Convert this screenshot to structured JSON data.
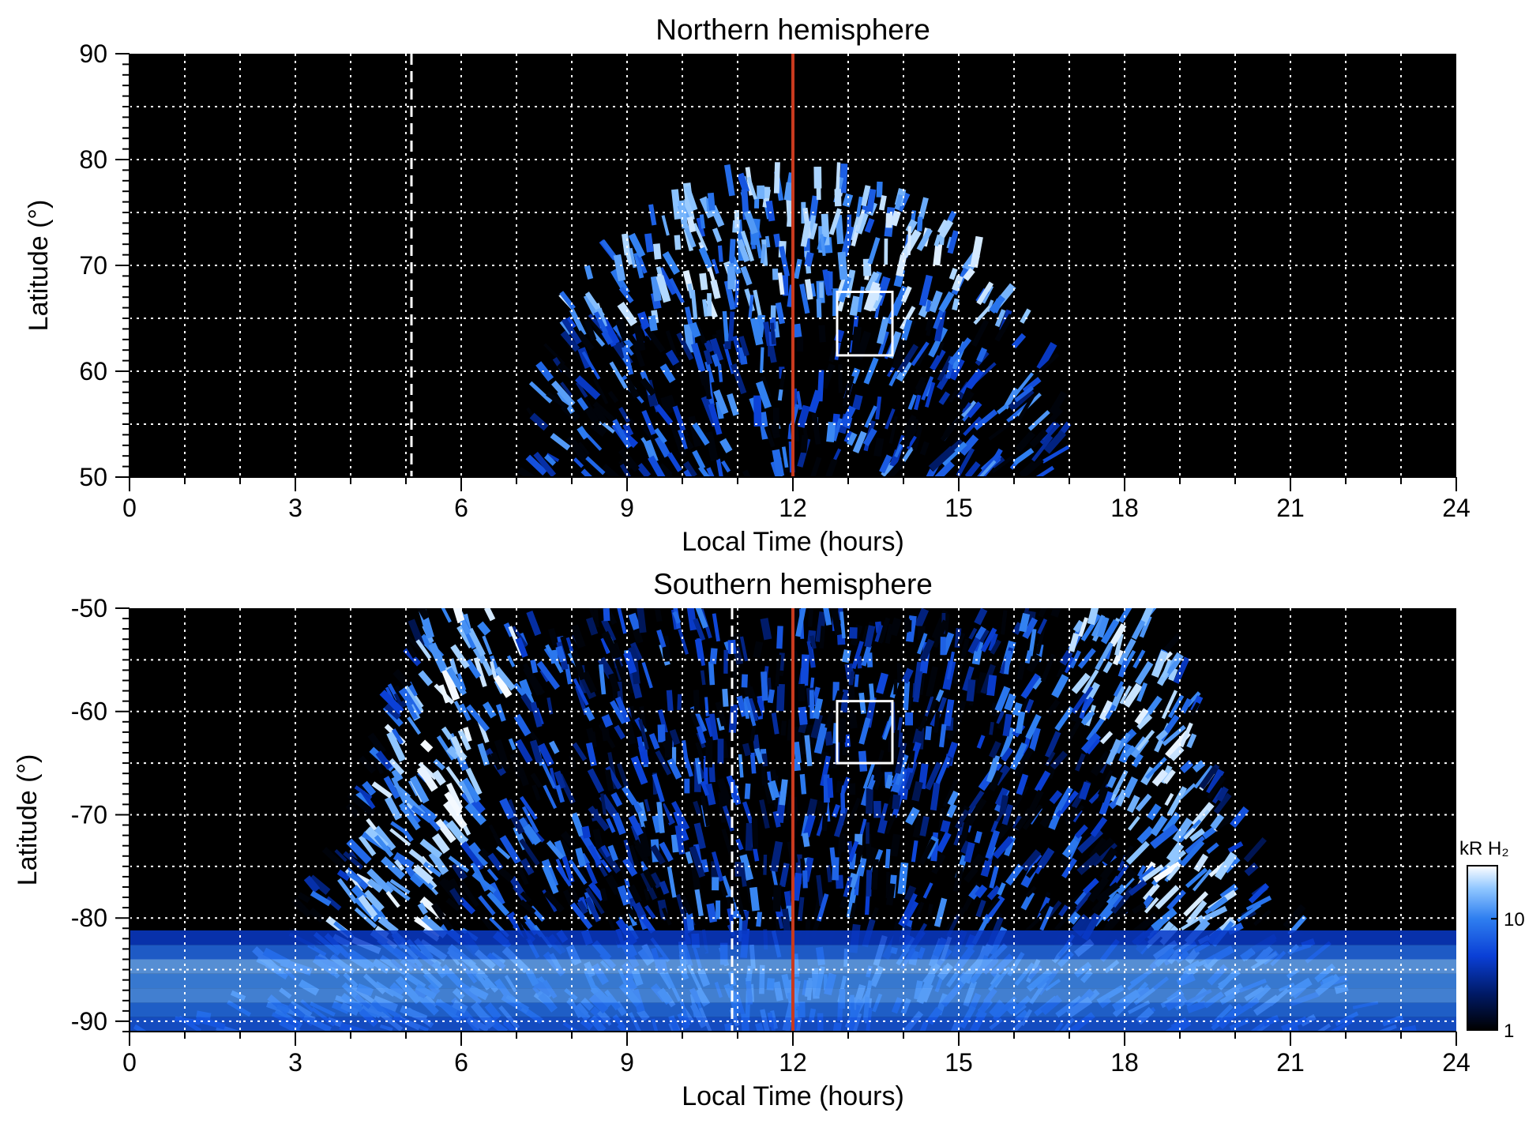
{
  "colors": {
    "background": "#000000",
    "grid": "#ffffff",
    "noon_line": "#c83a1e",
    "colormap": [
      "#000000",
      "#001a66",
      "#0a3fd6",
      "#2f7ff0",
      "#8fc6ff",
      "#ffffff"
    ]
  },
  "colorbar": {
    "title": "kR H₂",
    "scale": "log",
    "range": [
      1,
      30
    ],
    "ticks": [
      "1",
      "10"
    ],
    "tick_values": [
      1,
      10
    ]
  },
  "chart_data": [
    {
      "type": "heatmap",
      "title": "Northern hemisphere",
      "xlabel": "Local Time (hours)",
      "ylabel": "Latitude (°)",
      "xlim": [
        0,
        24
      ],
      "ylim": [
        50,
        90
      ],
      "x_ticks": [
        "0",
        "3",
        "6",
        "9",
        "12",
        "15",
        "18",
        "21",
        "24"
      ],
      "x_tick_values": [
        0,
        3,
        6,
        9,
        12,
        15,
        18,
        21,
        24
      ],
      "y_ticks": [
        "50",
        "60",
        "70",
        "80",
        "90"
      ],
      "y_tick_values": [
        50,
        60,
        70,
        80,
        90
      ],
      "grid": true,
      "grid_x_step": 1,
      "grid_y_step": 5,
      "coverage_lt": [
        7,
        17
      ],
      "coverage_edge_lat": [
        50,
        79
      ],
      "bright_band_lat": [
        65,
        76
      ],
      "noon_line_lt": 12,
      "dashed_line_lt": 5.1,
      "box": {
        "lt": [
          12.8,
          13.8
        ],
        "lat": [
          61.5,
          67.5
        ]
      }
    },
    {
      "type": "heatmap",
      "title": "Southern hemisphere",
      "xlabel": "Local Time (hours)",
      "ylabel": "Latitude (°)",
      "xlim": [
        0,
        24
      ],
      "ylim": [
        -91,
        -50
      ],
      "x_ticks": [
        "0",
        "3",
        "6",
        "9",
        "12",
        "15",
        "18",
        "21",
        "24"
      ],
      "x_tick_values": [
        0,
        3,
        6,
        9,
        12,
        15,
        18,
        21,
        24
      ],
      "y_ticks": [
        "-90",
        "-80",
        "-70",
        "-60",
        "-50"
      ],
      "y_tick_values": [
        -90,
        -80,
        -70,
        -60,
        -50
      ],
      "grid": true,
      "grid_x_step": 1,
      "grid_y_step": 5,
      "coverage_lt_top": [
        5.5,
        19
      ],
      "coverage_lt_bottom": [
        0,
        24
      ],
      "bright_arcs_lt": [
        6.3,
        17.7
      ],
      "noon_line_lt": 12,
      "dashed_line_lt": 10.9,
      "box": {
        "lt": [
          12.8,
          13.8
        ],
        "lat": [
          -65,
          -59
        ]
      }
    }
  ]
}
